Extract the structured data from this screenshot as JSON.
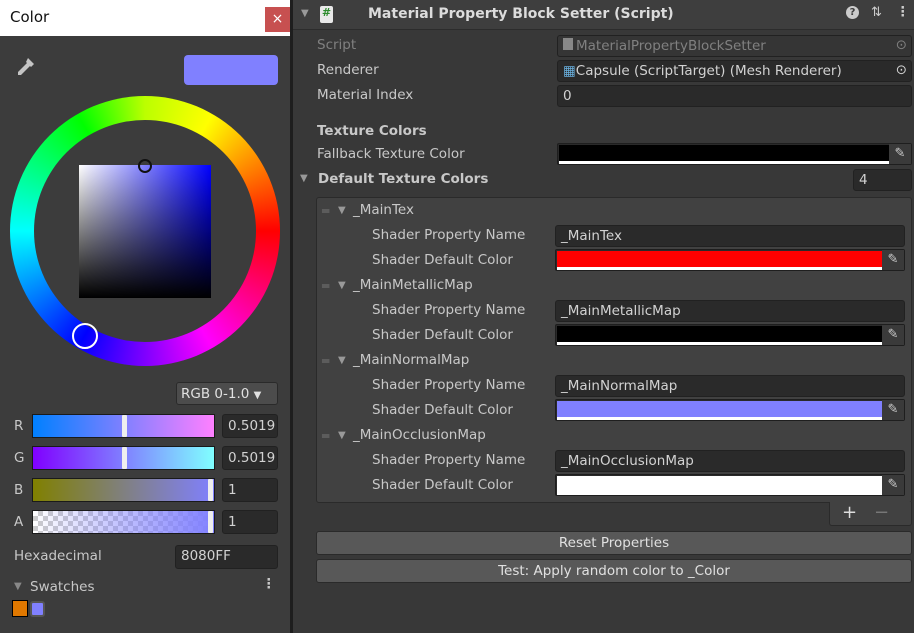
{
  "color_window": {
    "title": "Color",
    "close_label": "×",
    "current_color": "#8080FF",
    "mode_select": "RGB 0-1.0",
    "channels": [
      {
        "label": "R",
        "value": "0.5019",
        "fraction": 0.5019,
        "gradient": [
          "#0080ff",
          "#ff80ff"
        ]
      },
      {
        "label": "G",
        "value": "0.5019",
        "fraction": 0.5019,
        "gradient": [
          "#8000ff",
          "#80ffff"
        ]
      },
      {
        "label": "B",
        "value": "1",
        "fraction": 1,
        "gradient": [
          "#808000",
          "#8080ff"
        ]
      },
      {
        "label": "A",
        "value": "1",
        "fraction": 1,
        "gradient": [
          "#ffffff",
          "#8080ff"
        ]
      }
    ],
    "hex_label": "Hexadecimal",
    "hex_value": "8080FF",
    "swatches_label": "Swatches",
    "more_label": "⋮",
    "swatches": [
      "#e07800",
      "#8080ff"
    ]
  },
  "inspector": {
    "component_title": "Material Property Block Setter (Script)",
    "script_label": "Script",
    "script_value": "MaterialPropertyBlockSetter",
    "renderer_label": "Renderer",
    "renderer_value": "Capsule (ScriptTarget) (Mesh Renderer)",
    "material_index_label": "Material Index",
    "material_index_value": "0",
    "texture_colors_header": "Texture Colors",
    "fallback_label": "Fallback Texture Color",
    "fallback_color": "#000000",
    "default_colors_label": "Default Texture Colors",
    "default_colors_count": "4",
    "prop_name_label": "Shader Property Name",
    "default_color_label": "Shader Default Color",
    "items": [
      {
        "title": "_MainTex",
        "property": "_MainTex",
        "color": "#ff0000"
      },
      {
        "title": "_MainMetallicMap",
        "property": "_MainMetallicMap",
        "color": "#000000"
      },
      {
        "title": "_MainNormalMap",
        "property": "_MainNormalMap",
        "color": "#8080ff"
      },
      {
        "title": "_MainOcclusionMap",
        "property": "_MainOcclusionMap",
        "color": "#ffffff"
      }
    ],
    "add_label": "+",
    "remove_label": "−",
    "reset_button": "Reset Properties",
    "test_button": "Test: Apply random color to _Color"
  }
}
